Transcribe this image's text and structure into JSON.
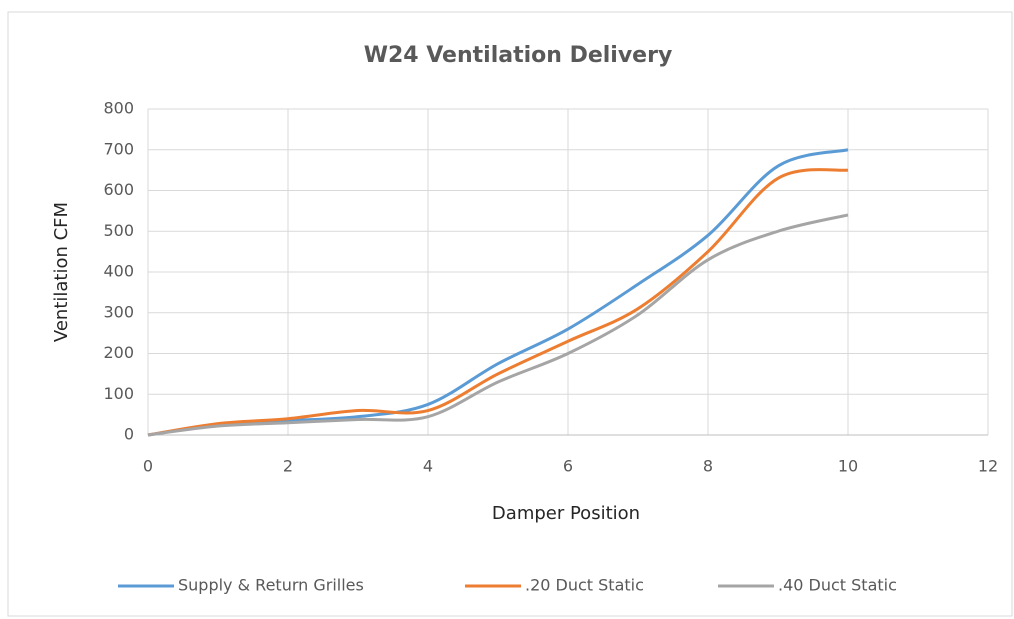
{
  "chart_data": {
    "type": "line",
    "title": "W24 Ventilation Delivery",
    "xlabel": "Damper Position",
    "ylabel": "Ventilation CFM",
    "x": [
      0,
      1,
      2,
      3,
      4,
      5,
      6,
      7,
      8,
      9,
      10
    ],
    "series": [
      {
        "name": "Supply & Return Grilles",
        "color": "#5b9bd5",
        "values": [
          0,
          25,
          35,
          45,
          75,
          175,
          260,
          370,
          490,
          660,
          700
        ]
      },
      {
        "name": ".20 Duct Static",
        "color": "#ed7d31",
        "values": [
          0,
          28,
          40,
          60,
          60,
          150,
          230,
          310,
          450,
          630,
          650
        ]
      },
      {
        "name": ".40 Duct Static",
        "color": "#a5a5a5",
        "values": [
          0,
          22,
          30,
          38,
          45,
          130,
          200,
          295,
          430,
          500,
          540
        ]
      }
    ],
    "xlim": [
      0,
      12
    ],
    "xticks": [
      0,
      2,
      4,
      6,
      8,
      10,
      12
    ],
    "ylim": [
      0,
      800
    ],
    "yticks": [
      0,
      100,
      200,
      300,
      400,
      500,
      600,
      700,
      800
    ],
    "grid": true,
    "legend": "bottom"
  }
}
